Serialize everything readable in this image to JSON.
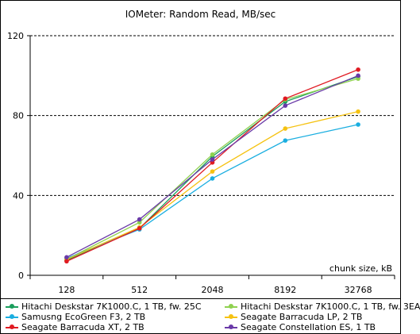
{
  "chart_data": {
    "type": "line",
    "title": "IOMeter: Random  Read, MB/sec",
    "xlabel": "chunk size, kB",
    "ylabel": "",
    "categories": [
      "128",
      "512",
      "2048",
      "8192",
      "32768"
    ],
    "ylim": [
      0,
      120
    ],
    "yticks": [
      0,
      40,
      80,
      120
    ],
    "grid": "horizontal dashed at 40, 80, 120",
    "legend_position": "bottom",
    "series": [
      {
        "name": "Hitachi Deskstar 7K1000.C, 1 TB, fw. 25C",
        "color": "#1a9e5c",
        "values": [
          7.5,
          23.5,
          59.5,
          87,
          99.5
        ]
      },
      {
        "name": "Hitachi Deskstar 7K1000.C, 1 TB, fw. 3EA",
        "color": "#8fd14f",
        "values": [
          8,
          26.5,
          60.5,
          88,
          98.5
        ]
      },
      {
        "name": "Samusng EcoGreen F3, 2 TB",
        "color": "#1aaee0",
        "values": [
          8.5,
          23,
          48.5,
          67.5,
          75.5
        ]
      },
      {
        "name": "Seagate Barracuda LP, 2 TB",
        "color": "#f5c211",
        "values": [
          8,
          24,
          52,
          73.5,
          82
        ]
      },
      {
        "name": "Seagate Barracuda XT, 2 TB",
        "color": "#e01a22",
        "values": [
          7,
          23.5,
          56.5,
          88.5,
          103
        ]
      },
      {
        "name": "Seagate Constellation ES, 1 TB",
        "color": "#6a3aa8",
        "values": [
          9,
          28,
          58,
          85,
          100
        ]
      }
    ]
  }
}
